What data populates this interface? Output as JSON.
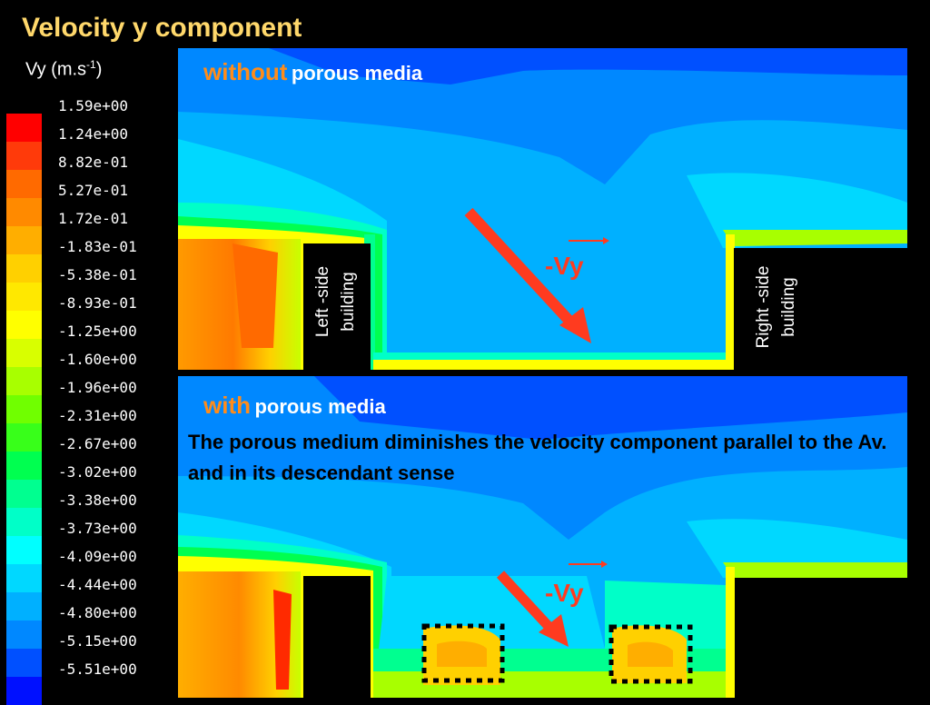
{
  "title": "Velocity y component",
  "unit": {
    "base": "Vy (m.s",
    "exp": "-1",
    "close": ")"
  },
  "legend": {
    "labels": [
      "1.59e+00",
      "1.24e+00",
      "8.82e-01",
      "5.27e-01",
      "1.72e-01",
      "-1.83e-01",
      "-5.38e-01",
      "-8.93e-01",
      "-1.25e+00",
      "-1.60e+00",
      "-1.96e+00",
      "-2.31e+00",
      "-2.67e+00",
      "-3.02e+00",
      "-3.38e+00",
      "-3.73e+00",
      "-4.09e+00",
      "-4.44e+00",
      "-4.80e+00",
      "-5.15e+00",
      "-5.51e+00"
    ],
    "colors": [
      "#ff0000",
      "#ff3a0a",
      "#ff6a00",
      "#ff8a00",
      "#ffae00",
      "#ffd000",
      "#ffe800",
      "#ffff00",
      "#d8ff00",
      "#a8ff00",
      "#70ff00",
      "#38ff1a",
      "#00ff50",
      "#00ff90",
      "#00ffc8",
      "#00ffff",
      "#00d8ff",
      "#00b0ff",
      "#0088ff",
      "#0050ff",
      "#0010ff"
    ]
  },
  "top_panel": {
    "heading_em": "without",
    "heading_rest": "porous media",
    "left_building": [
      "Left -side",
      "building"
    ],
    "right_building": [
      "Right -side",
      "building"
    ],
    "arrow_label": "-Vy"
  },
  "bottom_panel": {
    "heading_em": "with",
    "heading_rest": "porous media",
    "note": "The porous medium diminishes the velocity component parallel to the Av. and in its descendant sense",
    "arrow_label": "-Vy"
  }
}
